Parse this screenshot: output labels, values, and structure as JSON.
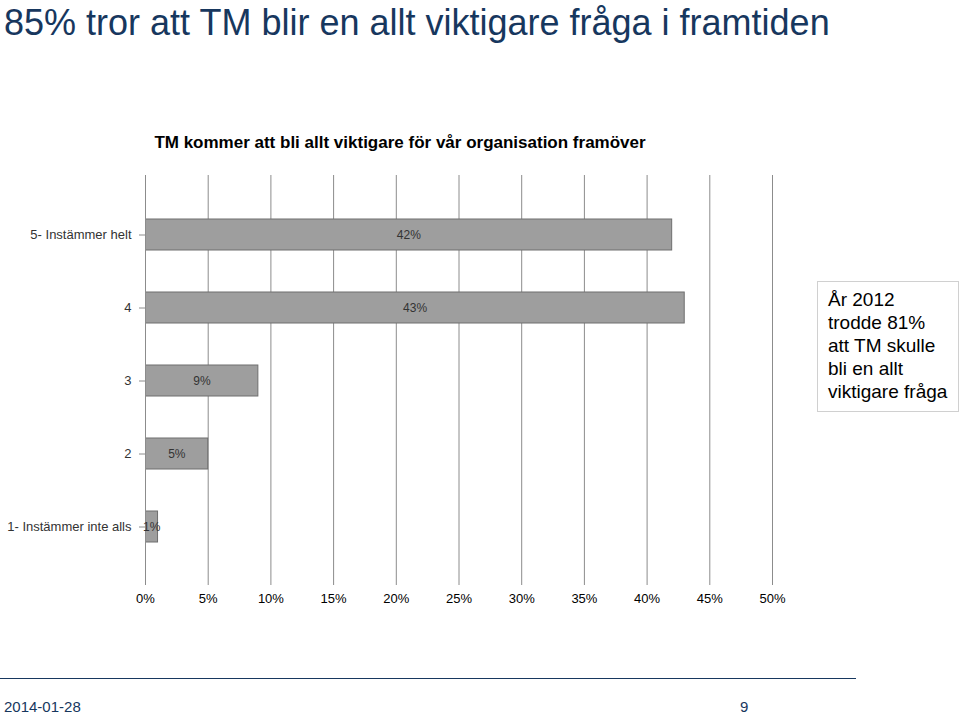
{
  "chart_data": {
    "type": "bar",
    "orientation": "horizontal",
    "title": "85% tror att TM blir en allt viktigare fråga i framtiden",
    "subtitle": "TM kommer att bli allt viktigare för vår organisation framöver",
    "categories": [
      "5- Instämmer helt",
      "4",
      "3",
      "2",
      "1- Instämmer inte alls"
    ],
    "values": [
      42,
      43,
      9,
      5,
      1
    ],
    "value_labels": [
      "42%",
      "43%",
      "9%",
      "5%",
      "1%"
    ],
    "data_labels": true,
    "color": "#9e9e9e",
    "xlim": [
      0,
      50
    ],
    "xticks": [
      {
        "value": 0,
        "label": "0%"
      },
      {
        "value": 5,
        "label": "5%"
      },
      {
        "value": 10,
        "label": "10%"
      },
      {
        "value": 15,
        "label": "15%"
      },
      {
        "value": 20,
        "label": "20%"
      },
      {
        "value": 25,
        "label": "25%"
      },
      {
        "value": 30,
        "label": "30%"
      },
      {
        "value": 35,
        "label": "35%"
      },
      {
        "value": 40,
        "label": "40%"
      },
      {
        "value": 45,
        "label": "45%"
      },
      {
        "value": 50,
        "label": "50%"
      }
    ],
    "grid": true,
    "annotations": [
      "År 2012 trodde 81% att TM skulle bli en allt viktigare fråga"
    ],
    "footer": {
      "date": "2014-01-28",
      "page": "9"
    }
  }
}
